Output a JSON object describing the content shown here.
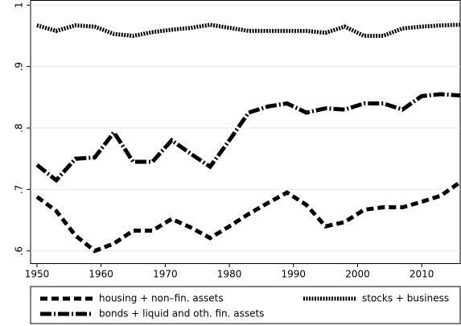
{
  "chart_data": {
    "type": "line",
    "x": [
      1950,
      1953,
      1956,
      1959,
      1962,
      1965,
      1968,
      1971,
      1974,
      1977,
      1980,
      1983,
      1986,
      1989,
      1992,
      1995,
      1998,
      2001,
      2004,
      2007,
      2010,
      2013,
      2016
    ],
    "series": [
      {
        "name": "housing + non–fin. assets",
        "color": "#000000",
        "dash": "dashed",
        "values": [
          0.688,
          0.665,
          0.625,
          0.6,
          0.612,
          0.633,
          0.633,
          0.652,
          0.638,
          0.621,
          0.64,
          0.66,
          0.678,
          0.695,
          0.675,
          0.64,
          0.647,
          0.667,
          0.671,
          0.671,
          0.68,
          0.69,
          0.712
        ]
      },
      {
        "name": "stocks + business",
        "color": "#000000",
        "dash": "dotted",
        "values": [
          0.967,
          0.958,
          0.967,
          0.965,
          0.953,
          0.95,
          0.956,
          0.96,
          0.963,
          0.968,
          0.963,
          0.958,
          0.958,
          0.958,
          0.958,
          0.955,
          0.965,
          0.95,
          0.95,
          0.962,
          0.965,
          0.967,
          0.968
        ]
      },
      {
        "name": "bonds + liquid and oth. fin. assets",
        "color": "#000000",
        "dash": "dashdot",
        "values": [
          0.74,
          0.715,
          0.75,
          0.752,
          0.793,
          0.745,
          0.745,
          0.78,
          0.758,
          0.737,
          0.78,
          0.825,
          0.835,
          0.84,
          0.825,
          0.832,
          0.83,
          0.84,
          0.84,
          0.83,
          0.852,
          0.855,
          0.853
        ]
      }
    ],
    "xlim": [
      1949,
      2016
    ],
    "xticks": [
      1950,
      1960,
      1970,
      1980,
      1990,
      2000,
      2010
    ],
    "ylim": [
      0.58,
      1.007
    ],
    "yticks": [
      {
        "value": 0.6,
        "label": ".6"
      },
      {
        "value": 0.7,
        "label": ".7"
      },
      {
        "value": 0.8,
        "label": ".8"
      },
      {
        "value": 0.9,
        "label": ".9"
      },
      1
    ],
    "grid": true,
    "legend": "bottom"
  }
}
